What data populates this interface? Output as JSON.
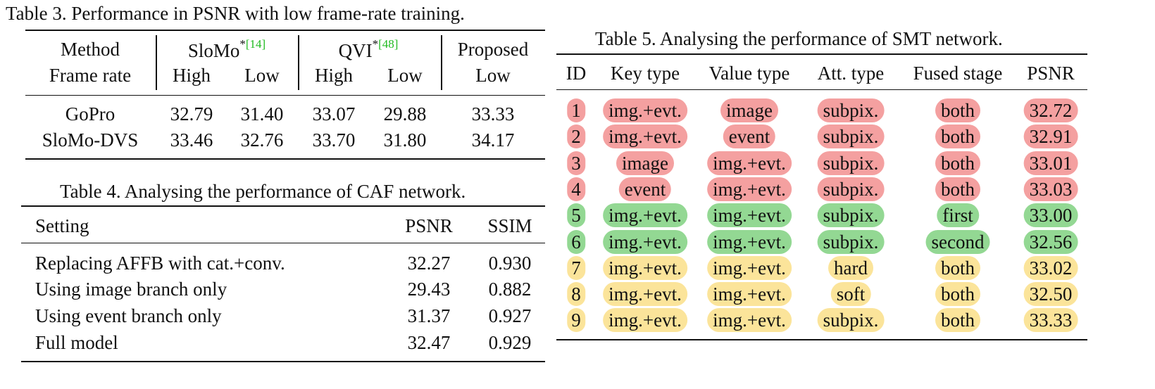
{
  "table3": {
    "caption": "Table 3. Performance in PSNR with low frame-rate training.",
    "header_method": "Method",
    "header_frame_rate": "Frame rate",
    "slomo": "SloMo",
    "slomo_star": "*",
    "slomo_cite": "[14]",
    "qvi": "QVI",
    "qvi_star": "*",
    "qvi_cite": "[48]",
    "proposed": "Proposed",
    "sub_high_1": "High",
    "sub_low_1": "Low",
    "sub_high_2": "High",
    "sub_low_2": "Low",
    "sub_low_3": "Low",
    "rows": [
      {
        "name": "GoPro",
        "v": [
          "32.79",
          "31.40",
          "33.07",
          "29.88",
          "33.33"
        ]
      },
      {
        "name": "SloMo-DVS",
        "v": [
          "33.46",
          "32.76",
          "33.70",
          "31.80",
          "34.17"
        ]
      }
    ]
  },
  "table4": {
    "caption": "Table 4. Analysing the performance of CAF network.",
    "headers": {
      "setting": "Setting",
      "psnr": "PSNR",
      "ssim": "SSIM"
    },
    "rows": [
      {
        "setting": "Replacing AFFB with cat.+conv.",
        "psnr": "32.27",
        "ssim": "0.930"
      },
      {
        "setting": "Using image branch only",
        "psnr": "29.43",
        "ssim": "0.882"
      },
      {
        "setting": "Using event branch only",
        "psnr": "31.37",
        "ssim": "0.927"
      },
      {
        "setting": "Full model",
        "psnr": "32.47",
        "ssim": "0.929"
      }
    ]
  },
  "table5": {
    "caption": "Table 5. Analysing the performance of SMT network.",
    "headers": {
      "id": "ID",
      "key": "Key type",
      "value": "Value type",
      "att": "Att. type",
      "fused": "Fused stage",
      "psnr": "PSNR"
    },
    "highlight_colors": {
      "red": "#f4a0a0",
      "green": "#93d893",
      "yellow": "#fbe49a"
    },
    "rows": [
      {
        "id": "1",
        "key": "img.+evt.",
        "value": "image",
        "att": "subpix.",
        "fused": "both",
        "psnr": "32.72",
        "group": "red"
      },
      {
        "id": "2",
        "key": "img.+evt.",
        "value": "event",
        "att": "subpix.",
        "fused": "both",
        "psnr": "32.91",
        "group": "red"
      },
      {
        "id": "3",
        "key": "image",
        "value": "img.+evt.",
        "att": "subpix.",
        "fused": "both",
        "psnr": "33.01",
        "group": "red"
      },
      {
        "id": "4",
        "key": "event",
        "value": "img.+evt.",
        "att": "subpix.",
        "fused": "both",
        "psnr": "33.03",
        "group": "red"
      },
      {
        "id": "5",
        "key": "img.+evt.",
        "value": "img.+evt.",
        "att": "subpix.",
        "fused": "first",
        "psnr": "33.00",
        "group": "green"
      },
      {
        "id": "6",
        "key": "img.+evt.",
        "value": "img.+evt.",
        "att": "subpix.",
        "fused": "second",
        "psnr": "32.56",
        "group": "green"
      },
      {
        "id": "7",
        "key": "img.+evt.",
        "value": "img.+evt.",
        "att": "hard",
        "fused": "both",
        "psnr": "33.02",
        "group": "yellow"
      },
      {
        "id": "8",
        "key": "img.+evt.",
        "value": "img.+evt.",
        "att": "soft",
        "fused": "both",
        "psnr": "32.50",
        "group": "yellow"
      },
      {
        "id": "9",
        "key": "img.+evt.",
        "value": "img.+evt.",
        "att": "subpix.",
        "fused": "both",
        "psnr": "33.33",
        "group": "yellow"
      }
    ]
  }
}
